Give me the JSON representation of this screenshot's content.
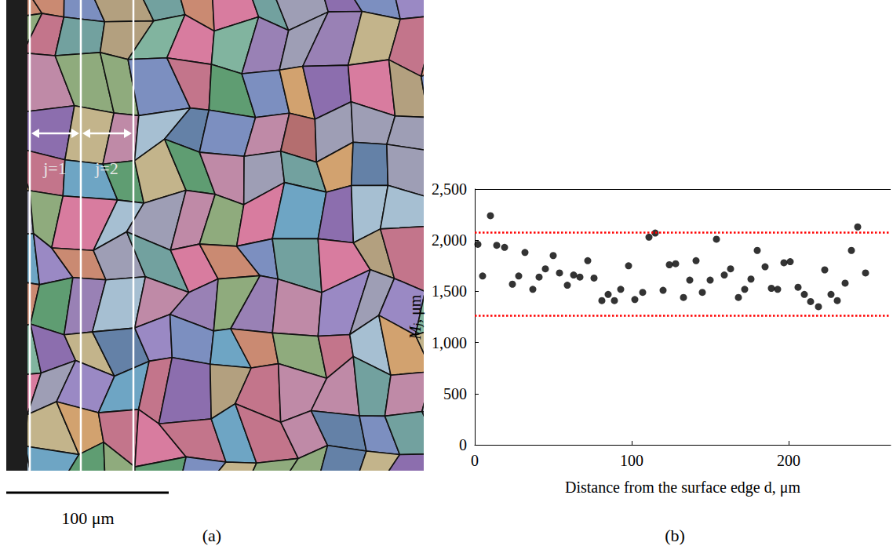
{
  "image_panel": {
    "label": "(a)",
    "strip_labels": [
      "j=1",
      "j=2"
    ],
    "scale_bar": "100 μm"
  },
  "chart_data": {
    "type": "scatter",
    "panel_label": "(b)",
    "xlabel": "Distance from the surface edge d, μm",
    "ylabel": {
      "symbol": "M",
      "subscript": "j",
      "unit": ", μm"
    },
    "x": [
      2,
      5,
      10,
      14,
      19,
      24,
      28,
      32,
      37,
      41,
      45,
      50,
      54,
      59,
      63,
      67,
      72,
      76,
      81,
      85,
      89,
      93,
      98,
      102,
      107,
      111,
      115,
      120,
      124,
      128,
      133,
      137,
      141,
      145,
      150,
      154,
      159,
      163,
      168,
      172,
      176,
      180,
      185,
      189,
      193,
      197,
      201,
      206,
      210,
      214,
      219,
      223,
      227,
      231,
      236,
      240,
      244,
      249
    ],
    "values": [
      1960,
      1650,
      2240,
      1950,
      1930,
      1570,
      1650,
      1880,
      1520,
      1640,
      1720,
      1850,
      1680,
      1560,
      1660,
      1640,
      1800,
      1630,
      1410,
      1470,
      1410,
      1520,
      1750,
      1420,
      1490,
      2030,
      2070,
      1510,
      1760,
      1770,
      1440,
      1610,
      1800,
      1490,
      1610,
      2010,
      1660,
      1720,
      1440,
      1520,
      1620,
      1900,
      1740,
      1530,
      1520,
      1780,
      1790,
      1540,
      1470,
      1400,
      1350,
      1710,
      1470,
      1410,
      1580,
      1900,
      2130,
      1680
    ],
    "color": "#000000",
    "marker": "circle",
    "xlim": [
      0,
      265
    ],
    "ylim": [
      0,
      2500
    ],
    "xticks": [
      0,
      100,
      200
    ],
    "yticks": [
      0,
      500,
      1000,
      1500,
      2000,
      2500
    ],
    "grid": false,
    "reference_lines": {
      "values": [
        2075,
        1265
      ],
      "color": "#ff0000",
      "line_style": "dotted"
    }
  }
}
